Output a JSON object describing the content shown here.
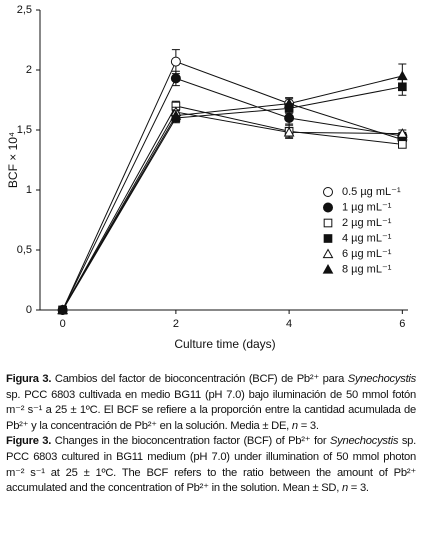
{
  "chart_data": {
    "type": "line",
    "x_label": "Culture time (days)",
    "y_label": "BCF × 10⁴",
    "x": [
      0,
      2,
      4,
      6
    ],
    "xlim": [
      -0.4,
      6.1
    ],
    "xticks": [
      0,
      2,
      4,
      6
    ],
    "ylim": [
      0,
      2.5
    ],
    "yticks": [
      0,
      {
        "value": 0.5,
        "label": "0,5"
      },
      1,
      {
        "value": 1.5,
        "label": "1,5"
      },
      2,
      {
        "value": 2.5,
        "label": "2,5"
      }
    ],
    "legend": "right",
    "series": [
      {
        "name": "0.5 µg mL⁻¹",
        "color": "#111111",
        "marker": "circle",
        "fill": "open",
        "values": [
          0,
          2.07,
          1.72,
          1.42
        ],
        "errors": [
          0,
          0.1,
          0.05,
          0.05
        ]
      },
      {
        "name": "1 µg mL⁻¹",
        "color": "#111111",
        "marker": "circle",
        "fill": "filled",
        "values": [
          0,
          1.93,
          1.6,
          1.45
        ],
        "errors": [
          0,
          0.06,
          0.06,
          0.03
        ]
      },
      {
        "name": "2 µg mL⁻¹",
        "color": "#111111",
        "marker": "square",
        "fill": "open",
        "values": [
          0,
          1.7,
          1.49,
          1.38
        ],
        "errors": [
          0,
          0.04,
          0.06,
          0.03
        ]
      },
      {
        "name": "4 µg mL⁻¹",
        "color": "#111111",
        "marker": "square",
        "fill": "filled",
        "values": [
          0,
          1.6,
          1.68,
          1.86
        ],
        "errors": [
          0,
          0.04,
          0.04,
          0.07
        ]
      },
      {
        "name": "6 µg mL⁻¹",
        "color": "#111111",
        "marker": "triangle",
        "fill": "open",
        "values": [
          0,
          1.65,
          1.48,
          1.47
        ],
        "errors": [
          0,
          0.04,
          0.04,
          0.03
        ]
      },
      {
        "name": "8 µg mL⁻¹",
        "color": "#111111",
        "marker": "triangle",
        "fill": "filled",
        "values": [
          0,
          1.62,
          1.72,
          1.95
        ],
        "errors": [
          0,
          0.04,
          0.04,
          0.1
        ]
      }
    ]
  },
  "caption": [
    [
      {
        "text": "Figura 3.",
        "style": "bold"
      },
      {
        "text": " Cambios del factor de bioconcentración (BCF) de Pb²⁺ para "
      },
      {
        "text": "Synechocystis",
        "style": "italic"
      },
      {
        "text": " sp. PCC 6803 cultivada en medio BG11 (pH 7.0) bajo iluminación de 50 mmol fotón m⁻² s⁻¹ a 25 ± 1ºC. El BCF se refiere a la proporción entre la cantidad acumulada de Pb²⁺ y la concentración de Pb²⁺ en la solución. Media ± DE, "
      },
      {
        "text": "n",
        "style": "italic"
      },
      {
        "text": " = 3."
      }
    ],
    [
      {
        "text": "Figure 3.",
        "style": "bold"
      },
      {
        "text": " Changes in the bioconcentration factor (BCF) of Pb²⁺ for "
      },
      {
        "text": "Synechocystis",
        "style": "italic"
      },
      {
        "text": " sp. PCC 6803 cultured in BG11 medium (pH 7.0) under illumination of 50 mmol photon m⁻² s⁻¹ at 25 ± 1ºC. The BCF refers to the ratio between the amount of Pb²⁺ accumulated and the concentration of Pb²⁺ in the solution. Mean ± SD, "
      },
      {
        "text": "n",
        "style": "italic"
      },
      {
        "text": " = 3."
      }
    ]
  ]
}
